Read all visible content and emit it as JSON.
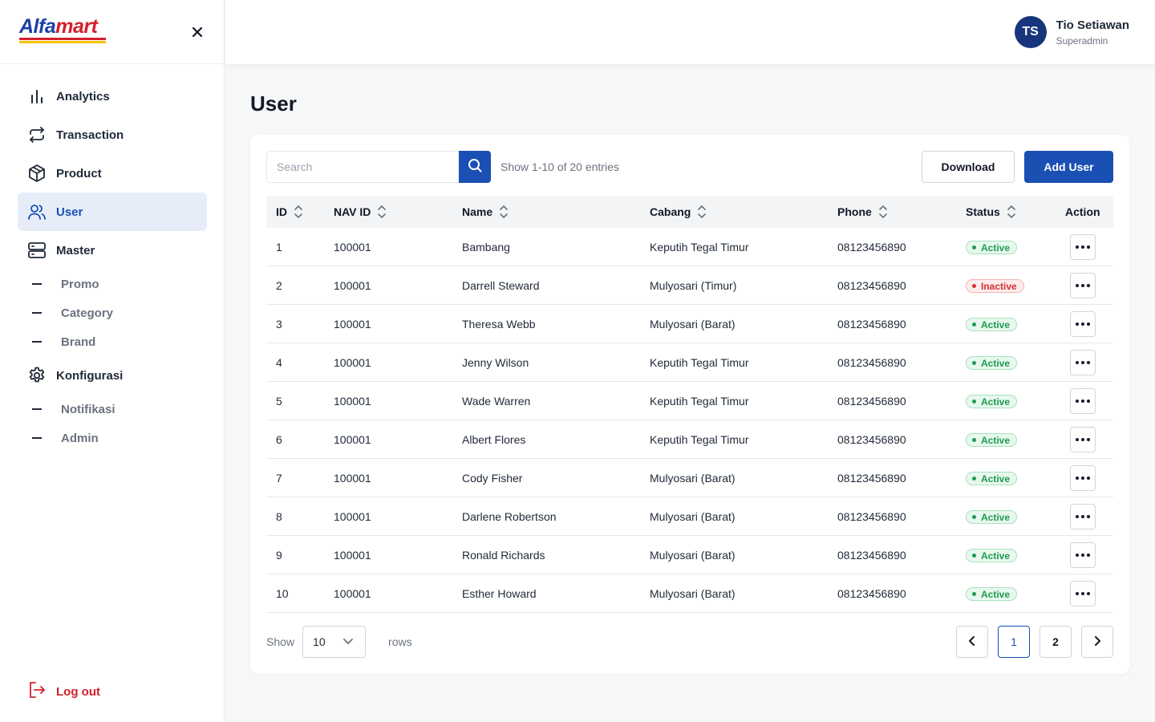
{
  "brand": {
    "logo_part1": "Alfa",
    "logo_part2": "mart"
  },
  "sidebar": {
    "items": [
      {
        "label": "Analytics",
        "icon": "bar-chart-icon"
      },
      {
        "label": "Transaction",
        "icon": "repeat-arrows-icon"
      },
      {
        "label": "Product",
        "icon": "box-icon"
      },
      {
        "label": "User",
        "icon": "users-icon",
        "active": true
      },
      {
        "label": "Master",
        "icon": "server-icon"
      }
    ],
    "master_sub": [
      "Promo",
      "Category",
      "Brand"
    ],
    "konfig": {
      "label": "Konfigurasi",
      "icon": "gear-icon"
    },
    "konfig_sub": [
      "Notifikasi",
      "Admin"
    ],
    "logout": "Log out"
  },
  "user": {
    "initials": "TS",
    "name": "Tio Setiawan",
    "role": "Superadmin"
  },
  "page": {
    "title": "User"
  },
  "toolbar": {
    "search_placeholder": "Search",
    "entries": "Show 1-10 of 20 entries",
    "download": "Download",
    "add_user": "Add User"
  },
  "table": {
    "columns": [
      "ID",
      "NAV ID",
      "Name",
      "Cabang",
      "Phone",
      "Status",
      "Action"
    ],
    "rows": [
      {
        "id": "1",
        "nav_id": "100001",
        "name": "Bambang",
        "cabang": "Keputih Tegal Timur",
        "phone": "08123456890",
        "status": "Active"
      },
      {
        "id": "2",
        "nav_id": "100001",
        "name": "Darrell Steward",
        "cabang": "Mulyosari (Timur)",
        "phone": "08123456890",
        "status": "Inactive"
      },
      {
        "id": "3",
        "nav_id": "100001",
        "name": "Theresa Webb",
        "cabang": "Mulyosari (Barat)",
        "phone": "08123456890",
        "status": "Active"
      },
      {
        "id": "4",
        "nav_id": "100001",
        "name": "Jenny Wilson",
        "cabang": "Keputih Tegal Timur",
        "phone": "08123456890",
        "status": "Active"
      },
      {
        "id": "5",
        "nav_id": "100001",
        "name": "Wade Warren",
        "cabang": "Keputih Tegal Timur",
        "phone": "08123456890",
        "status": "Active"
      },
      {
        "id": "6",
        "nav_id": "100001",
        "name": "Albert Flores",
        "cabang": "Keputih Tegal Timur",
        "phone": "08123456890",
        "status": "Active"
      },
      {
        "id": "7",
        "nav_id": "100001",
        "name": "Cody Fisher",
        "cabang": "Mulyosari (Barat)",
        "phone": "08123456890",
        "status": "Active"
      },
      {
        "id": "8",
        "nav_id": "100001",
        "name": "Darlene Robertson",
        "cabang": "Mulyosari (Barat)",
        "phone": "08123456890",
        "status": "Active"
      },
      {
        "id": "9",
        "nav_id": "100001",
        "name": "Ronald Richards",
        "cabang": "Mulyosari (Barat)",
        "phone": "08123456890",
        "status": "Active"
      },
      {
        "id": "10",
        "nav_id": "100001",
        "name": "Esther Howard",
        "cabang": "Mulyosari (Barat)",
        "phone": "08123456890",
        "status": "Active"
      }
    ]
  },
  "footer": {
    "show_label": "Show",
    "rows_value": "10",
    "rows_label": "rows",
    "pages": [
      "1",
      "2"
    ],
    "current_page": "1"
  },
  "colors": {
    "primary": "#1a4fb4",
    "brand_red": "#d3202b",
    "active": "#1e9b4f",
    "inactive": "#d33030"
  }
}
